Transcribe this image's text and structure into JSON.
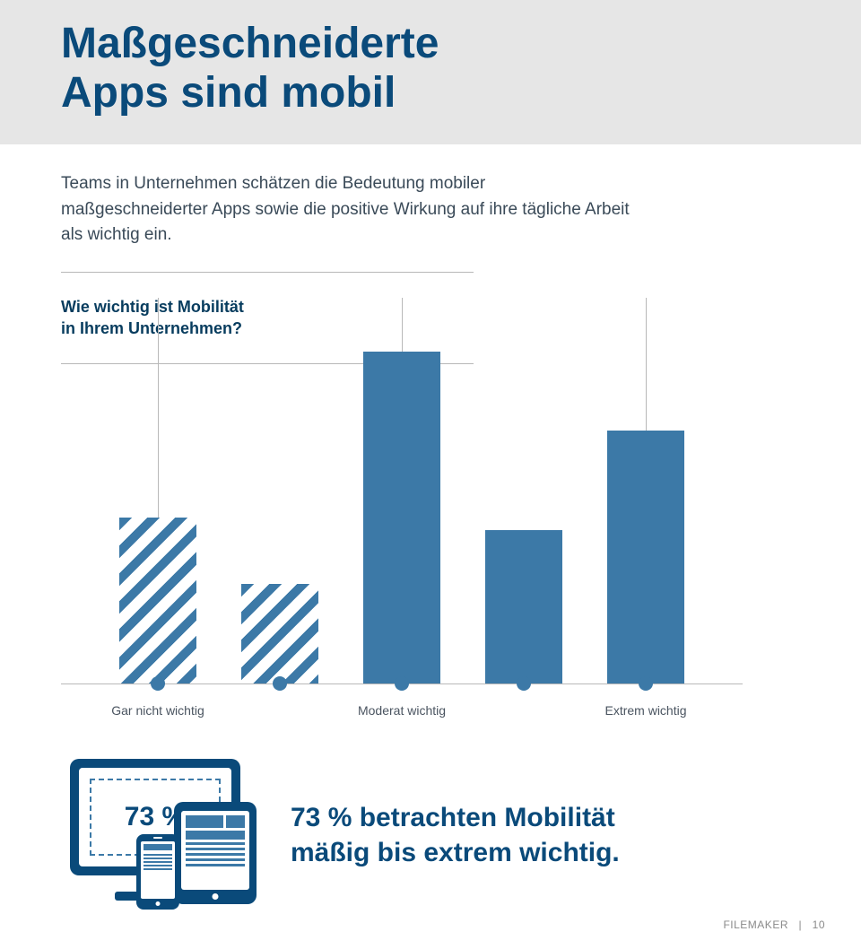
{
  "header": {
    "title_line1": "Maßgeschneiderte",
    "title_line2": "Apps sind mobil"
  },
  "intro_text": "Teams in Unternehmen schätzen die Bedeutung mobiler maßgeschneiderter Apps sowie die positive Wirkung auf ihre tägliche Arbeit als wichtig ein.",
  "question": {
    "line1": "Wie wichtig ist Mobilität",
    "line2": "in Ihrem Unternehmen?"
  },
  "chart": {
    "type": "bar",
    "max_value": 100,
    "solid_color": "#3c79a7",
    "guideline_color": "#b8b8b8",
    "bars": [
      {
        "value": 50,
        "fill": "striped",
        "guideline": true
      },
      {
        "value": 30,
        "fill": "striped",
        "guideline": false
      },
      {
        "value": 100,
        "fill": "solid",
        "guideline": true
      },
      {
        "value": 46,
        "fill": "solid",
        "guideline": false
      },
      {
        "value": 76,
        "fill": "solid",
        "guideline": true
      }
    ],
    "axis_labels": [
      {
        "text": "Gar nicht wichtig",
        "at_index": 0
      },
      {
        "text": "Moderat wichtig",
        "at_index": 2
      },
      {
        "text": "Extrem wichtig",
        "at_index": 4
      }
    ]
  },
  "callout": {
    "pct": "73 %",
    "text": "73 % betrachten Mobilität mäßig bis extrem wichtig."
  },
  "footer": {
    "brand": "FILEMAKER",
    "sep": "|",
    "page": "10"
  },
  "colors": {
    "header_bg": "#e6e6e6",
    "title": "#0a4a7a",
    "body_text": "#3a4a58",
    "bar_solid": "#3c79a7",
    "accent_dark": "#0a4a7a"
  }
}
